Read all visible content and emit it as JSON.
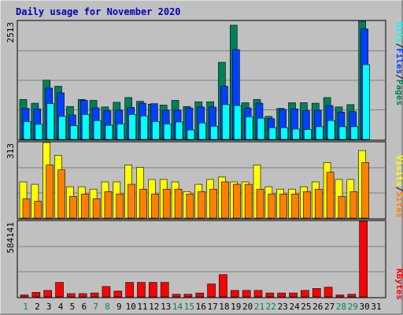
{
  "colors": {
    "background": "#c0c0c0",
    "hits": "#00ffff",
    "files": "#0040ff",
    "pages": "#00805a",
    "visits": "#ffff00",
    "sites": "#ff8000",
    "kbytes": "#ff0000",
    "title": "#0000c0",
    "weekend_label": "#00805a",
    "weekday_label": "#000000"
  },
  "chart_data": [
    {
      "type": "bar",
      "title": "Daily usage for November 2020",
      "panel": "top",
      "y_max_label": "2513",
      "legend": [
        "Pages",
        "Files",
        "Hits"
      ],
      "legend_separator": "/",
      "ylim": [
        0,
        2513
      ],
      "grid": true,
      "categories": [
        "1",
        "2",
        "3",
        "4",
        "5",
        "6",
        "7",
        "8",
        "9",
        "10",
        "11",
        "12",
        "13",
        "14",
        "15",
        "16",
        "17",
        "18",
        "19",
        "20",
        "21",
        "22",
        "23",
        "24",
        "25",
        "26",
        "27",
        "28",
        "29",
        "30",
        "31"
      ],
      "series": [
        {
          "name": "Hits",
          "values": [
            380,
            320,
            760,
            490,
            290,
            530,
            400,
            300,
            330,
            530,
            500,
            380,
            330,
            370,
            200,
            350,
            280,
            740,
            720,
            480,
            450,
            250,
            250,
            220,
            210,
            270,
            400,
            270,
            270,
            1590,
            0
          ]
        },
        {
          "name": "Files",
          "values": [
            660,
            650,
            1090,
            990,
            520,
            830,
            670,
            610,
            620,
            680,
            770,
            760,
            620,
            620,
            670,
            690,
            690,
            1130,
            1910,
            670,
            770,
            440,
            640,
            650,
            610,
            620,
            720,
            580,
            590,
            2350,
            0
          ]
        },
        {
          "name": "Pages",
          "values": [
            850,
            770,
            1260,
            1130,
            700,
            850,
            830,
            690,
            790,
            890,
            810,
            750,
            730,
            830,
            700,
            800,
            800,
            1640,
            2430,
            780,
            850,
            490,
            660,
            780,
            780,
            770,
            890,
            690,
            740,
            2513,
            0
          ]
        }
      ]
    },
    {
      "type": "bar",
      "panel": "middle",
      "y_max_label": "313",
      "legend": [
        "Sites",
        "Visits"
      ],
      "legend_separator": "/",
      "ylim": [
        0,
        313
      ],
      "grid": true,
      "categories": [
        "1",
        "2",
        "3",
        "4",
        "5",
        "6",
        "7",
        "8",
        "9",
        "10",
        "11",
        "12",
        "13",
        "14",
        "15",
        "16",
        "17",
        "18",
        "19",
        "20",
        "21",
        "22",
        "23",
        "24",
        "25",
        "26",
        "27",
        "28",
        "29",
        "30",
        "31"
      ],
      "series": [
        {
          "name": "Sites",
          "values": [
            80,
            70,
            220,
            200,
            90,
            100,
            80,
            110,
            100,
            140,
            120,
            100,
            120,
            120,
            100,
            110,
            120,
            150,
            140,
            140,
            120,
            100,
            100,
            100,
            110,
            120,
            190,
            90,
            110,
            230,
            0
          ]
        },
        {
          "name": "Visits",
          "values": [
            150,
            140,
            313,
            260,
            130,
            130,
            120,
            150,
            150,
            220,
            210,
            160,
            160,
            150,
            110,
            140,
            160,
            170,
            150,
            150,
            220,
            130,
            120,
            120,
            130,
            150,
            230,
            160,
            160,
            280,
            0
          ]
        }
      ]
    },
    {
      "type": "bar",
      "panel": "bottom",
      "y_max_label": "584141",
      "legend": [
        "KBytes"
      ],
      "ylim": [
        0,
        584141
      ],
      "grid": true,
      "categories": [
        "1",
        "2",
        "3",
        "4",
        "5",
        "6",
        "7",
        "8",
        "9",
        "10",
        "11",
        "12",
        "13",
        "14",
        "15",
        "16",
        "17",
        "18",
        "19",
        "20",
        "21",
        "22",
        "23",
        "24",
        "25",
        "26",
        "27",
        "28",
        "29",
        "30",
        "31"
      ],
      "weekend_days": [
        "1",
        "7",
        "8",
        "14",
        "15",
        "21",
        "22",
        "28",
        "29"
      ],
      "series": [
        {
          "name": "KBytes",
          "values": [
            15000,
            35000,
            50000,
            112000,
            25000,
            25000,
            30000,
            80000,
            45000,
            112000,
            112000,
            112000,
            112000,
            20000,
            20000,
            30000,
            100000,
            172000,
            50000,
            50000,
            50000,
            30000,
            30000,
            30000,
            50000,
            65000,
            75000,
            15000,
            20000,
            584141,
            0
          ]
        }
      ]
    }
  ]
}
